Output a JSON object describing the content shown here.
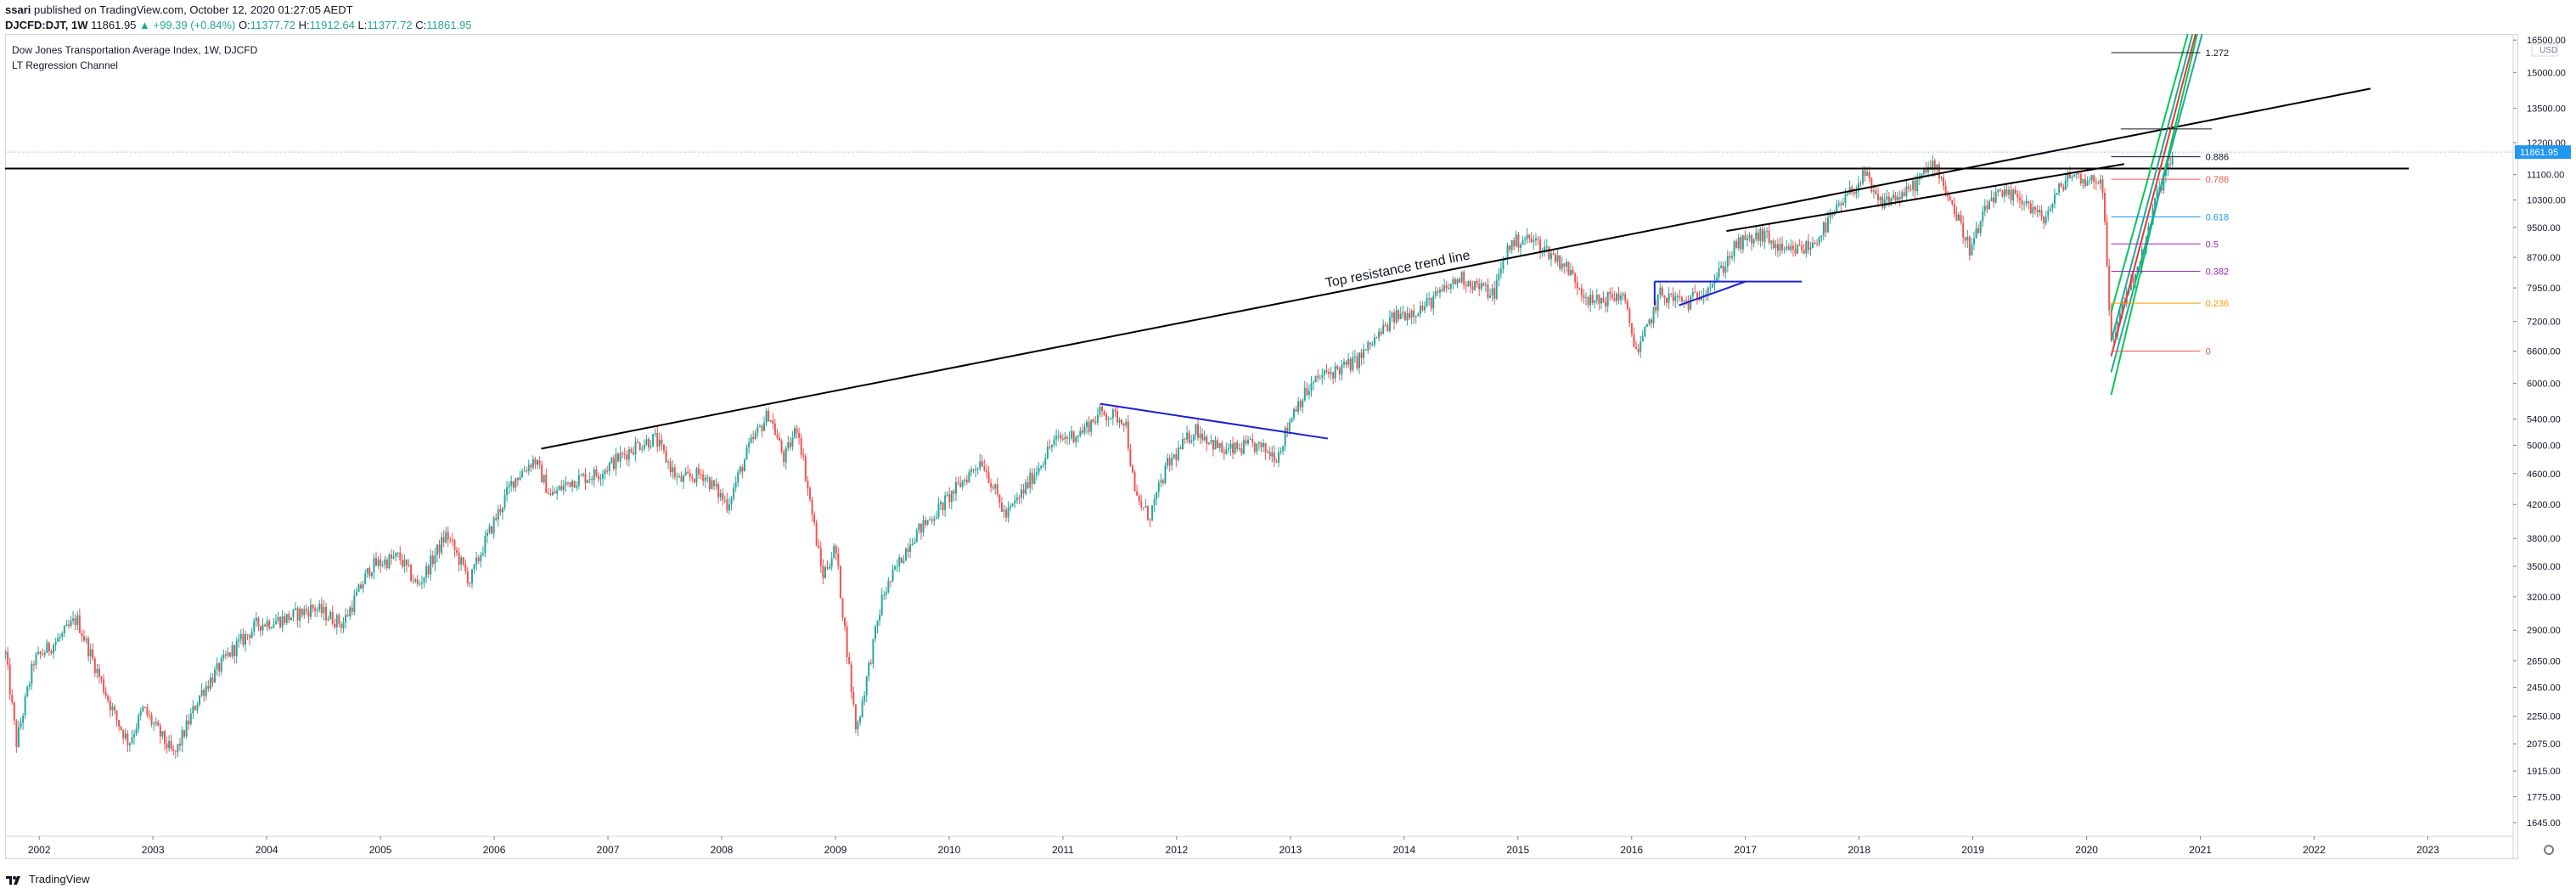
{
  "header": {
    "author": "ssari",
    "published": "published on TradingView.com, October 12, 2020 01:27:05 AEDT",
    "symbol": "DJCFD:DJT, 1W",
    "last": "11861.95",
    "change": "▲ +99.39 (+0.84%)",
    "o_label": "O:",
    "o": "11377.72",
    "h_label": "H:",
    "h": "11912.64",
    "l_label": "L:",
    "l": "11377.72",
    "c_label": "C:",
    "c": "11861.95"
  },
  "legend": {
    "title": "Dow Jones Transportation Average Index, 1W, DJCFD",
    "indicator": "LT Regression Channel"
  },
  "footer": {
    "brand": "TradingView",
    "icon": "tradingview-logo-icon"
  },
  "colors": {
    "up": "#26a69a",
    "down": "#ef5350",
    "price_tag": "#2196f3",
    "trend": "#000000",
    "pattern": "#1a20d6",
    "channel_green": "#00c853",
    "channel_teal": "#26a69a",
    "channel_red": "#e53935"
  },
  "chart_data": {
    "type": "candlestick",
    "title": "Dow Jones Transportation Average Index, 1W, DJCFD",
    "x_axis": {
      "type": "time",
      "tick_labels": [
        "2002",
        "2003",
        "2004",
        "2005",
        "2006",
        "2007",
        "2008",
        "2009",
        "2010",
        "2011",
        "2012",
        "2013",
        "2014",
        "2015",
        "2016",
        "2017",
        "2018",
        "2019",
        "2020",
        "2021",
        "2022",
        "2023"
      ]
    },
    "y_axis": {
      "scale": "log",
      "currency": "USD",
      "range": [
        1580,
        16800
      ],
      "tick_labels": [
        "16500.00",
        "15000.00",
        "13500.00",
        "12200.00",
        "11100.00",
        "10300.00",
        "9500.00",
        "8700.00",
        "7950.00",
        "7200.00",
        "6600.00",
        "6000.00",
        "5400.00",
        "5000.00",
        "4600.00",
        "4200.00",
        "3800.00",
        "3500.00",
        "3200.00",
        "2900.00",
        "2650.00",
        "2450.00",
        "2250.00",
        "2075.00",
        "1915.00",
        "1775.00",
        "1645.00"
      ],
      "tick_values": [
        16500,
        15000,
        13500,
        12200,
        11100,
        10300,
        9500,
        8700,
        7950,
        7200,
        6600,
        6000,
        5400,
        5000,
        4600,
        4200,
        3800,
        3500,
        3200,
        2900,
        2650,
        2450,
        2250,
        2075,
        1915,
        1775,
        1645
      ]
    },
    "current_price": 11861.95,
    "current_price_label": "11861.95",
    "price_path": [
      [
        "2001-09-15",
        2700
      ],
      [
        "2001-10-20",
        2080
      ],
      [
        "2001-12-15",
        2650
      ],
      [
        "2002-03-15",
        2850
      ],
      [
        "2002-05-01",
        3000
      ],
      [
        "2002-07-01",
        2600
      ],
      [
        "2002-09-01",
        2250
      ],
      [
        "2002-10-15",
        2080
      ],
      [
        "2002-12-01",
        2300
      ],
      [
        "2003-03-10",
        2000
      ],
      [
        "2003-06-01",
        2400
      ],
      [
        "2003-09-01",
        2700
      ],
      [
        "2003-12-01",
        2950
      ],
      [
        "2004-03-01",
        3000
      ],
      [
        "2004-06-01",
        3100
      ],
      [
        "2004-09-01",
        2950
      ],
      [
        "2004-12-01",
        3500
      ],
      [
        "2005-03-01",
        3600
      ],
      [
        "2005-05-01",
        3300
      ],
      [
        "2005-08-01",
        3850
      ],
      [
        "2005-10-15",
        3350
      ],
      [
        "2005-12-01",
        3750
      ],
      [
        "2006-03-01",
        4500
      ],
      [
        "2006-05-10",
        4800
      ],
      [
        "2006-07-01",
        4300
      ],
      [
        "2006-09-01",
        4500
      ],
      [
        "2006-12-01",
        4600
      ],
      [
        "2007-04-01",
        5000
      ],
      [
        "2007-06-01",
        5100
      ],
      [
        "2007-08-15",
        4500
      ],
      [
        "2007-11-01",
        4600
      ],
      [
        "2008-01-20",
        4200
      ],
      [
        "2008-04-01",
        5000
      ],
      [
        "2008-06-01",
        5500
      ],
      [
        "2008-07-20",
        4800
      ],
      [
        "2008-09-01",
        5300
      ],
      [
        "2008-11-20",
        3400
      ],
      [
        "2009-01-01",
        3700
      ],
      [
        "2009-03-09",
        2150
      ],
      [
        "2009-06-01",
        3200
      ],
      [
        "2009-09-01",
        3800
      ],
      [
        "2009-12-01",
        4150
      ],
      [
        "2010-04-15",
        4800
      ],
      [
        "2010-07-01",
        4050
      ],
      [
        "2010-09-01",
        4400
      ],
      [
        "2010-12-01",
        5050
      ],
      [
        "2011-03-01",
        5200
      ],
      [
        "2011-05-01",
        5500
      ],
      [
        "2011-07-20",
        5400
      ],
      [
        "2011-08-20",
        4300
      ],
      [
        "2011-10-05",
        4050
      ],
      [
        "2011-12-01",
        4700
      ],
      [
        "2012-03-01",
        5250
      ],
      [
        "2012-06-01",
        4900
      ],
      [
        "2012-09-01",
        5000
      ],
      [
        "2012-11-20",
        4850
      ],
      [
        "2013-01-15",
        5600
      ],
      [
        "2013-04-01",
        6100
      ],
      [
        "2013-08-01",
        6400
      ],
      [
        "2013-12-01",
        7300
      ],
      [
        "2014-03-01",
        7500
      ],
      [
        "2014-07-01",
        8200
      ],
      [
        "2014-10-15",
        7800
      ],
      [
        "2014-12-01",
        9000
      ],
      [
        "2015-01-20",
        9200
      ],
      [
        "2015-03-01",
        9100
      ],
      [
        "2015-06-01",
        8500
      ],
      [
        "2015-08-25",
        7600
      ],
      [
        "2015-12-01",
        7800
      ],
      [
        "2016-01-20",
        6550
      ],
      [
        "2016-04-01",
        7800
      ],
      [
        "2016-07-01",
        7600
      ],
      [
        "2016-10-01",
        8200
      ],
      [
        "2016-12-01",
        9000
      ],
      [
        "2017-03-01",
        9300
      ],
      [
        "2017-05-01",
        8800
      ],
      [
        "2017-08-01",
        9000
      ],
      [
        "2017-12-01",
        10500
      ],
      [
        "2018-01-20",
        11100
      ],
      [
        "2018-03-01",
        10200
      ],
      [
        "2018-06-01",
        10500
      ],
      [
        "2018-09-01",
        11500
      ],
      [
        "2018-12-24",
        8900
      ],
      [
        "2019-03-01",
        10400
      ],
      [
        "2019-06-01",
        10400
      ],
      [
        "2019-08-15",
        9700
      ],
      [
        "2019-11-01",
        11100
      ],
      [
        "2020-01-15",
        10900
      ],
      [
        "2020-02-20",
        11000
      ],
      [
        "2020-03-20",
        6700
      ],
      [
        "2020-05-01",
        7700
      ],
      [
        "2020-07-01",
        8800
      ],
      [
        "2020-08-15",
        10500
      ],
      [
        "2020-10-09",
        11861.95
      ]
    ],
    "fibonacci": {
      "levels": [
        "0",
        "0.236",
        "0.382",
        "0.5",
        "0.618",
        "0.786",
        "0.886",
        "1.272"
      ],
      "prices": [
        6600,
        7600,
        8350,
        9050,
        9800,
        10950,
        11700,
        15900
      ],
      "colors": [
        "#ef5350",
        "#ff9800",
        "#9c27b0",
        "#9c27b0",
        "#2196f3",
        "#ef5350",
        "#131722",
        "#131722"
      ]
    },
    "annotations": {
      "trendline_label": "Top resistance trend line"
    },
    "drawings": {
      "top_resistance": {
        "from": [
          "2006-06-01",
          4950
        ],
        "to": [
          "2022-07-01",
          14300
        ]
      },
      "horizontal_resistance": {
        "from": [
          "2001-09-01",
          11300
        ],
        "to": [
          "2022-11-01",
          11300
        ]
      },
      "trend_2017": {
        "from": [
          "2016-11-01",
          9400
        ],
        "to": [
          "2020-05-01",
          11450
        ]
      },
      "small_resistance": {
        "from": [
          "2006-03-01",
          4800
        ],
        "to": [
          "2007-05-01",
          5200
        ]
      },
      "wedge_2011": {
        "from": [
          "2011-05-01",
          5650
        ],
        "to": [
          "2013-05-01",
          5100
        ]
      },
      "rect_2016_top": {
        "from": [
          "2016-03-15",
          8100
        ],
        "to": [
          "2017-07-01",
          8100
        ]
      },
      "wedge_2016_low": {
        "from": [
          "2016-06-01",
          7550
        ],
        "to": [
          "2017-01-01",
          8100
        ]
      },
      "regression_channel": [
        {
          "color": "#00c853",
          "from": [
            "2020-03-20",
            5800
          ],
          "to": [
            "2020-12-25",
            17000
          ]
        },
        {
          "color": "#26a69a",
          "from": [
            "2020-03-20",
            6200
          ],
          "to": [
            "2021-01-10",
            17000
          ]
        },
        {
          "color": "#26a69a",
          "from": [
            "2020-03-20",
            6800
          ],
          "to": [
            "2020-12-10",
            17000
          ]
        },
        {
          "color": "#e53935",
          "from": [
            "2020-03-20",
            6500
          ],
          "to": [
            "2020-12-20",
            17000
          ]
        },
        {
          "color": "#00c853",
          "from": [
            "2020-03-20",
            7400
          ],
          "to": [
            "2020-11-25",
            17000
          ]
        }
      ]
    }
  }
}
